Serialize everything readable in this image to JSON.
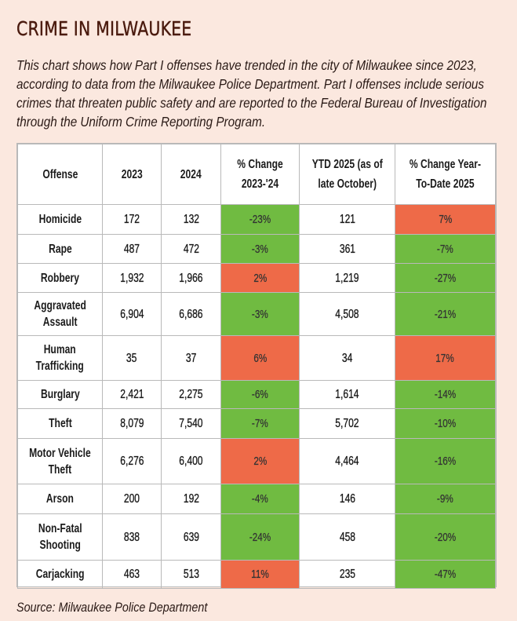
{
  "title": "CRIME IN MILWAUKEE",
  "subtitle": "This chart shows how Part I offenses have trended in the city of Milwaukee since 2023, according to data from the Milwaukee Police Department. Part I offenses include serious crimes that threaten public safety and are reported to the Federal Bureau of Investigation through the Uniform Crime Reporting Program.",
  "source": "Source: Milwaukee Police Department",
  "colors": {
    "background": "#FBE8DF",
    "title": "#4A1A0E",
    "increase": "#EE6A48",
    "decrease": "#70BB41"
  },
  "chart_data": {
    "type": "table",
    "title": "CRIME IN MILWAUKEE",
    "columns": [
      "Offense",
      "2023",
      "2024",
      "% Change 2023-'24",
      "YTD 2025 (as of late October)",
      "% Change Year-To-Date 2025"
    ],
    "header_lines": [
      [
        "Offense"
      ],
      [
        "2023"
      ],
      [
        "2024"
      ],
      [
        "% Change",
        "2023-'24"
      ],
      [
        "YTD 2025 (as of",
        "late October)"
      ],
      [
        "% Change Year-",
        "To-Date 2025"
      ]
    ],
    "rows": [
      {
        "offense": [
          "Homicide"
        ],
        "y2023": "172",
        "y2024": "132",
        "chg_23_24": "-23%",
        "ytd2025": "121",
        "chg_ytd": "7%"
      },
      {
        "offense": [
          "Rape"
        ],
        "y2023": "487",
        "y2024": "472",
        "chg_23_24": "-3%",
        "ytd2025": "361",
        "chg_ytd": "-7%"
      },
      {
        "offense": [
          "Robbery"
        ],
        "y2023": "1,932",
        "y2024": "1,966",
        "chg_23_24": "2%",
        "ytd2025": "1,219",
        "chg_ytd": "-27%"
      },
      {
        "offense": [
          "Aggravated",
          "Assault"
        ],
        "y2023": "6,904",
        "y2024": "6,686",
        "chg_23_24": "-3%",
        "ytd2025": "4,508",
        "chg_ytd": "-21%"
      },
      {
        "offense": [
          "Human",
          "Trafficking"
        ],
        "y2023": "35",
        "y2024": "37",
        "chg_23_24": "6%",
        "ytd2025": "34",
        "chg_ytd": "17%"
      },
      {
        "offense": [
          "Burglary"
        ],
        "y2023": "2,421",
        "y2024": "2,275",
        "chg_23_24": "-6%",
        "ytd2025": "1,614",
        "chg_ytd": "-14%"
      },
      {
        "offense": [
          "Theft"
        ],
        "y2023": "8,079",
        "y2024": "7,540",
        "chg_23_24": "-7%",
        "ytd2025": "5,702",
        "chg_ytd": "-10%"
      },
      {
        "offense": [
          "Motor Vehicle",
          "Theft"
        ],
        "y2023": "6,276",
        "y2024": "6,400",
        "chg_23_24": "2%",
        "ytd2025": "4,464",
        "chg_ytd": "-16%"
      },
      {
        "offense": [
          "Arson"
        ],
        "y2023": "200",
        "y2024": "192",
        "chg_23_24": "-4%",
        "ytd2025": "146",
        "chg_ytd": "-9%"
      },
      {
        "offense": [
          "Non-Fatal",
          "Shooting"
        ],
        "y2023": "838",
        "y2024": "639",
        "chg_23_24": "-24%",
        "ytd2025": "458",
        "chg_ytd": "-20%"
      },
      {
        "offense": [
          "Carjacking"
        ],
        "y2023": "463",
        "y2024": "513",
        "chg_23_24": "11%",
        "ytd2025": "235",
        "chg_ytd": "-47%"
      }
    ]
  }
}
